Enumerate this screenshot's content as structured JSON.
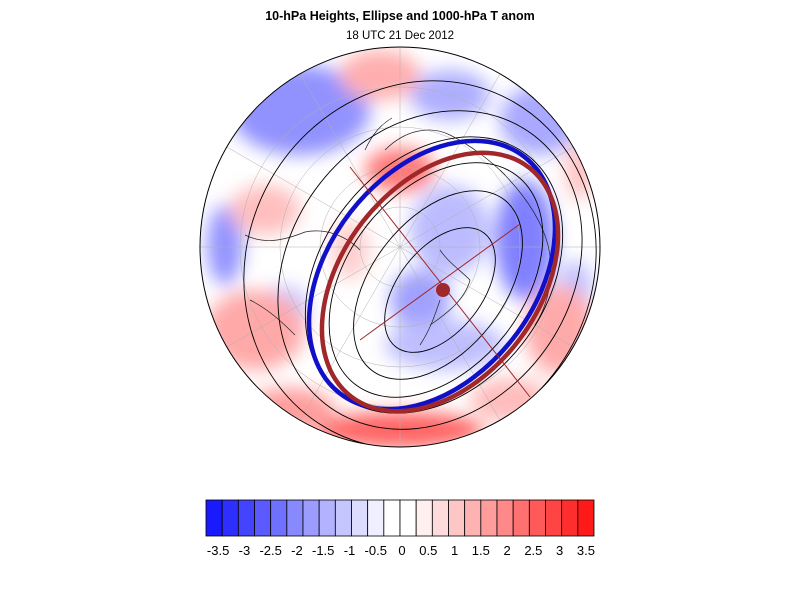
{
  "figure": {
    "title": "10-hPa Heights, Ellipse and 1000-hPa T anom",
    "subtitle": "18 UTC 21 Dec 2012"
  },
  "colorbar": {
    "labels": [
      "-3.5",
      "-3",
      "-2.5",
      "-2",
      "-1.5",
      "-1",
      "-0.5",
      "0",
      "0.5",
      "1",
      "1.5",
      "2",
      "2.5",
      "3",
      "3.5"
    ],
    "colors": [
      "#1a1aff",
      "#2e2eff",
      "#4444ff",
      "#5a5aff",
      "#7070ff",
      "#8888ff",
      "#9c9cff",
      "#b2b2ff",
      "#c6c6ff",
      "#dcdcff",
      "#efefff",
      "#ffffff",
      "#ffffff",
      "#ffefef",
      "#ffdcdc",
      "#ffc6c6",
      "#ffb2b2",
      "#ff9c9c",
      "#ff8888",
      "#ff7070",
      "#ff5a5a",
      "#ff4444",
      "#ff2e2e",
      "#ff1a1a"
    ]
  },
  "map": {
    "projection": "north-polar-stereographic",
    "colors": {
      "ellipse_fit": "#a0282a",
      "vortex_edge": "#1010c8",
      "contours": "#000000",
      "warm": "#ff3030",
      "cold": "#3030ff"
    }
  }
}
